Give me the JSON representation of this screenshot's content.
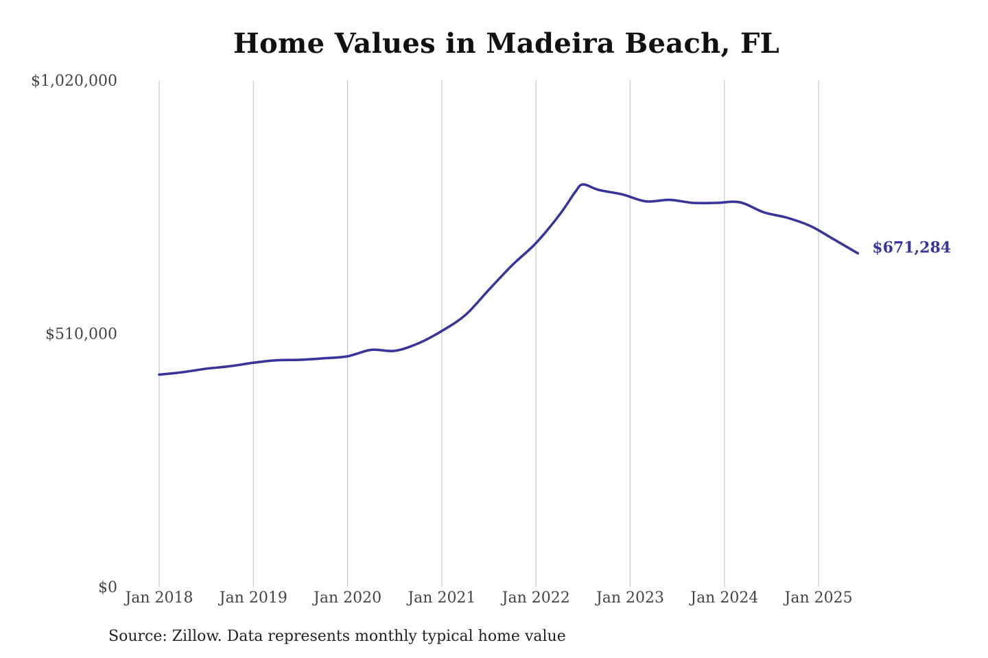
{
  "chart_data": {
    "type": "line",
    "title": "Home Values in Madeira Beach, FL",
    "xlabel": "",
    "ylabel": "",
    "ylim": [
      0,
      1020000
    ],
    "y_ticks": [
      {
        "value": 1020000,
        "label": "$1,020,000"
      },
      {
        "value": 510000,
        "label": "$510,000"
      },
      {
        "value": 0,
        "label": "$0"
      }
    ],
    "x_ticks": [
      {
        "date": "2018-01",
        "label": "Jan 2018"
      },
      {
        "date": "2019-01",
        "label": "Jan 2019"
      },
      {
        "date": "2020-01",
        "label": "Jan 2020"
      },
      {
        "date": "2021-01",
        "label": "Jan 2021"
      },
      {
        "date": "2022-01",
        "label": "Jan 2022"
      },
      {
        "date": "2023-01",
        "label": "Jan 2023"
      },
      {
        "date": "2024-01",
        "label": "Jan 2024"
      },
      {
        "date": "2025-01",
        "label": "Jan 2025"
      }
    ],
    "xlim": [
      "2018-01",
      "2025-06"
    ],
    "grid": {
      "x": true,
      "y": false
    },
    "series": [
      {
        "name": "",
        "color": "#38349a",
        "end_label": "$671,284",
        "points": [
          {
            "x": "2018-01",
            "y": 427000
          },
          {
            "x": "2018-04",
            "y": 432000
          },
          {
            "x": "2018-07",
            "y": 439000
          },
          {
            "x": "2018-10",
            "y": 444000
          },
          {
            "x": "2019-01",
            "y": 451000
          },
          {
            "x": "2019-04",
            "y": 456000
          },
          {
            "x": "2019-07",
            "y": 457000
          },
          {
            "x": "2019-10",
            "y": 460000
          },
          {
            "x": "2020-01",
            "y": 464000
          },
          {
            "x": "2020-04",
            "y": 477000
          },
          {
            "x": "2020-07",
            "y": 475000
          },
          {
            "x": "2020-10",
            "y": 490000
          },
          {
            "x": "2021-01",
            "y": 515000
          },
          {
            "x": "2021-04",
            "y": 547000
          },
          {
            "x": "2021-07",
            "y": 598000
          },
          {
            "x": "2021-10",
            "y": 648000
          },
          {
            "x": "2022-01",
            "y": 692000
          },
          {
            "x": "2022-04",
            "y": 749000
          },
          {
            "x": "2022-06",
            "y": 795000
          },
          {
            "x": "2022-07",
            "y": 810000
          },
          {
            "x": "2022-09",
            "y": 799000
          },
          {
            "x": "2022-12",
            "y": 790000
          },
          {
            "x": "2023-03",
            "y": 776000
          },
          {
            "x": "2023-06",
            "y": 779000
          },
          {
            "x": "2023-09",
            "y": 773000
          },
          {
            "x": "2023-12",
            "y": 773000
          },
          {
            "x": "2024-03",
            "y": 774000
          },
          {
            "x": "2024-06",
            "y": 754000
          },
          {
            "x": "2024-09",
            "y": 743000
          },
          {
            "x": "2024-12",
            "y": 726000
          },
          {
            "x": "2025-03",
            "y": 699000
          },
          {
            "x": "2025-06",
            "y": 671284
          }
        ]
      }
    ],
    "source": "Source: Zillow. Data represents monthly typical home value"
  }
}
